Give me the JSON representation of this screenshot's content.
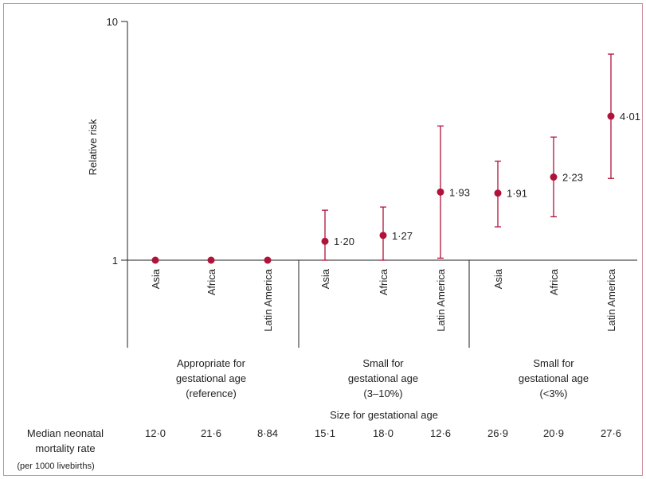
{
  "chart_data": {
    "type": "scatter",
    "ylabel": "Relative risk",
    "y_scale": "log",
    "ylim": [
      1,
      10
    ],
    "y_ticks": [
      "1",
      "10"
    ],
    "point_color": "#b0133a",
    "categories": [
      "Asia",
      "Africa",
      "Latin America",
      "Asia",
      "Africa",
      "Latin America",
      "Asia",
      "Africa",
      "Latin America"
    ],
    "groups": [
      {
        "label": "Appropriate for\ngestational age\n(reference)"
      },
      {
        "label": "Small for\ngestational age\n(3–10%)"
      },
      {
        "label": "Small for\ngestational age\n(<3%)"
      }
    ],
    "group_axis_label": "Size for gestational age",
    "points": [
      {
        "group": 0,
        "region": "Asia",
        "value": 1.0,
        "lower": null,
        "upper": null,
        "label": ""
      },
      {
        "group": 0,
        "region": "Africa",
        "value": 1.0,
        "lower": null,
        "upper": null,
        "label": ""
      },
      {
        "group": 0,
        "region": "Latin America",
        "value": 1.0,
        "lower": null,
        "upper": null,
        "label": ""
      },
      {
        "group": 1,
        "region": "Asia",
        "value": 1.2,
        "lower": 1.0,
        "upper": 1.62,
        "label": "1·20"
      },
      {
        "group": 1,
        "region": "Africa",
        "value": 1.27,
        "lower": 1.0,
        "upper": 1.67,
        "label": "1·27"
      },
      {
        "group": 1,
        "region": "Latin America",
        "value": 1.93,
        "lower": 1.02,
        "upper": 3.65,
        "label": "1·93"
      },
      {
        "group": 2,
        "region": "Asia",
        "value": 1.91,
        "lower": 1.38,
        "upper": 2.6,
        "label": "1·91"
      },
      {
        "group": 2,
        "region": "Africa",
        "value": 2.23,
        "lower": 1.52,
        "upper": 3.28,
        "label": "2·23"
      },
      {
        "group": 2,
        "region": "Latin America",
        "value": 4.01,
        "lower": 2.2,
        "upper": 7.3,
        "label": "4·01"
      }
    ],
    "mortality_row": {
      "label_line1": "Median neonatal",
      "label_line2": "mortality rate",
      "label_line3": "(per 1000 livebirths)",
      "values": [
        "12·0",
        "21·6",
        "8·84",
        "15·1",
        "18·0",
        "12·6",
        "26·9",
        "20·9",
        "27·6"
      ]
    }
  }
}
